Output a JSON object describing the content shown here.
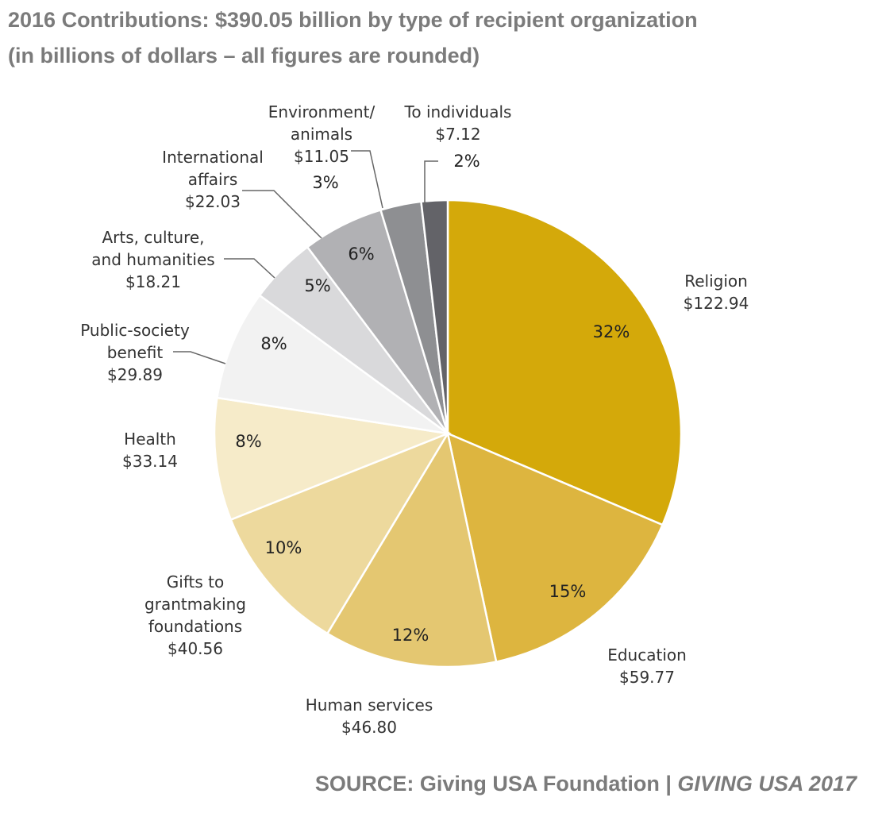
{
  "chart_data": {
    "type": "pie",
    "title": "2016 Contributions: $390.05 billion by type of recipient organization",
    "subtitle": "(in billions of dollars – all figures are rounded)",
    "start": "top",
    "direction": "clockwise",
    "slices": [
      {
        "name": [
          "Religion"
        ],
        "value": 122.94,
        "value_label": "$122.94",
        "pct": "32%",
        "color": "#D4A90A"
      },
      {
        "name": [
          "Education"
        ],
        "value": 59.77,
        "value_label": "$59.77",
        "pct": "15%",
        "color": "#DDB53F"
      },
      {
        "name": [
          "Human services"
        ],
        "value": 46.8,
        "value_label": "$46.80",
        "pct": "12%",
        "color": "#E4C771"
      },
      {
        "name": [
          "Gifts to",
          "grantmaking",
          "foundations"
        ],
        "value": 40.56,
        "value_label": "$40.56",
        "pct": "10%",
        "color": "#EDD99D"
      },
      {
        "name": [
          "Health"
        ],
        "value": 33.14,
        "value_label": "$33.14",
        "pct": "8%",
        "color": "#F6EBC9"
      },
      {
        "name": [
          "Public-society",
          "benefit"
        ],
        "value": 29.89,
        "value_label": "$29.89",
        "pct": "8%",
        "color": "#F2F2F2"
      },
      {
        "name": [
          "Arts, culture,",
          "and humanities"
        ],
        "value": 18.21,
        "value_label": "$18.21",
        "pct": "5%",
        "color": "#D9D9DB"
      },
      {
        "name": [
          "International",
          "affairs"
        ],
        "value": 22.03,
        "value_label": "$22.03",
        "pct": "6%",
        "color": "#B1B1B4"
      },
      {
        "name": [
          "Environment/",
          "animals"
        ],
        "value": 11.05,
        "value_label": "$11.05",
        "pct": "3%",
        "color": "#8E8F92"
      },
      {
        "name": [
          "To individuals"
        ],
        "value": 7.12,
        "value_label": "$7.12",
        "pct": "2%",
        "color": "#636368"
      }
    ]
  },
  "source": {
    "prefix": "SOURCE: Giving USA Foundation | ",
    "publication": "GIVING USA 2017"
  }
}
